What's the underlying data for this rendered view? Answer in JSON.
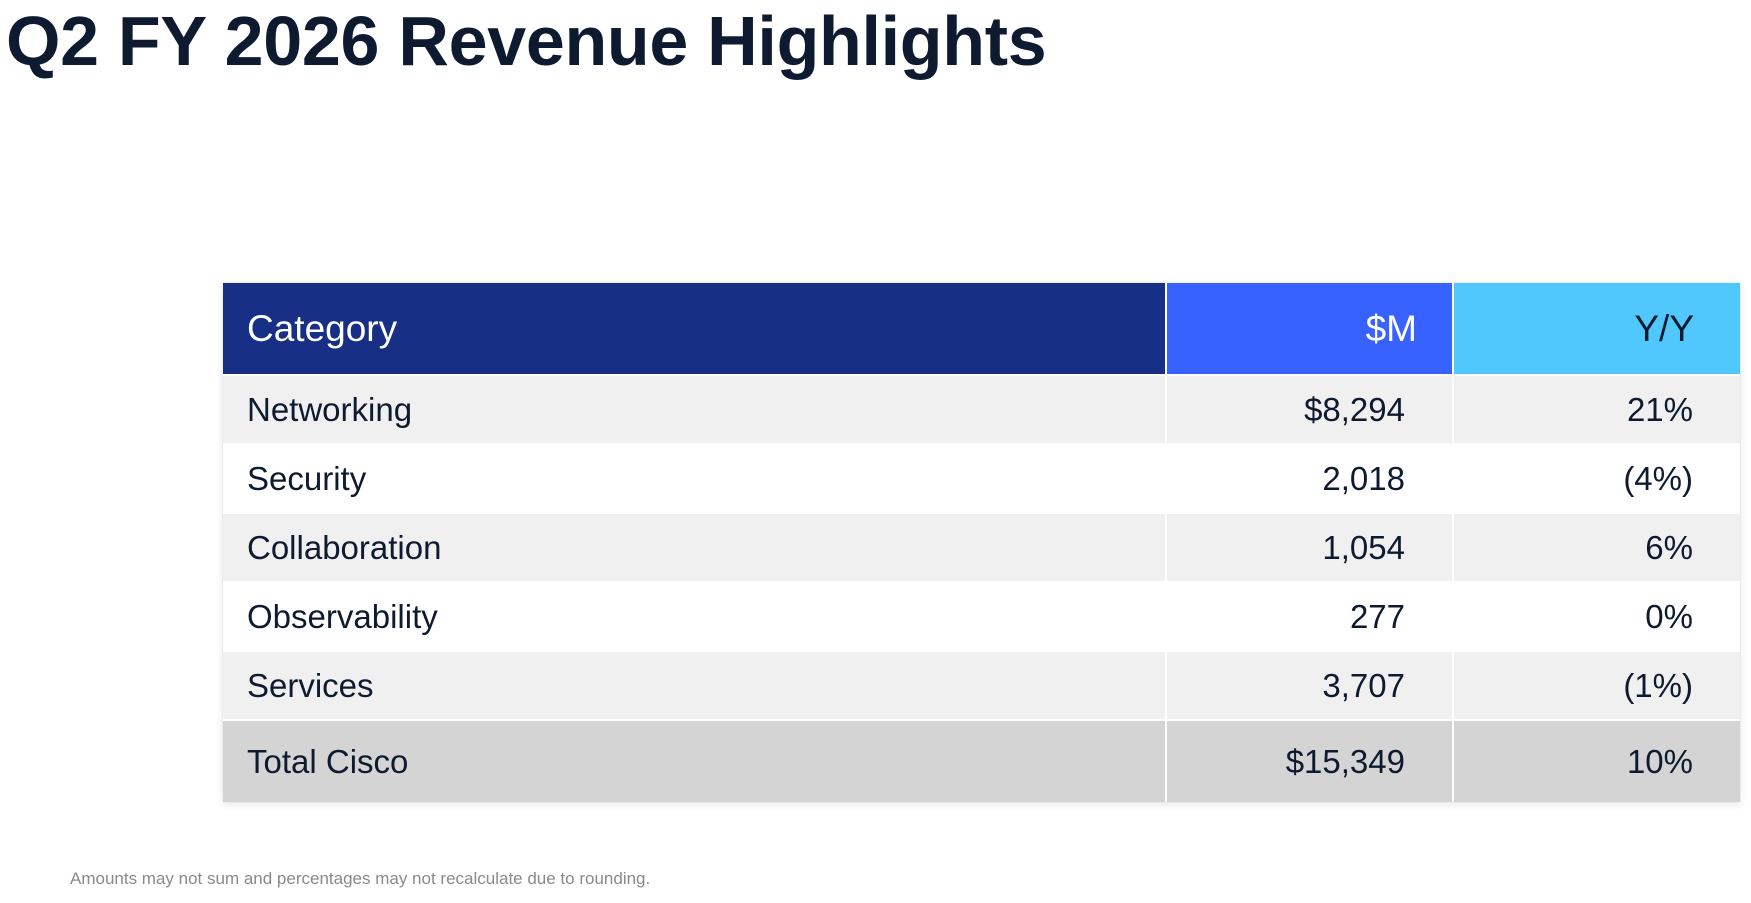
{
  "title": "Q2 FY 2026 Revenue Highlights",
  "table": {
    "headers": {
      "category": "Category",
      "usd_m": "$M",
      "yoy": "Y/Y"
    },
    "header_colors": {
      "category": "#172f85",
      "usd_m": "#3862ff",
      "yoy": "#50c8fd"
    },
    "rows": [
      {
        "category": "Networking",
        "usd_m": "$8,294",
        "yoy": "21%"
      },
      {
        "category": "Security",
        "usd_m": "2,018",
        "yoy": "(4%)"
      },
      {
        "category": "Collaboration",
        "usd_m": "1,054",
        "yoy": "6%"
      },
      {
        "category": "Observability",
        "usd_m": "277",
        "yoy": "0%"
      },
      {
        "category": "Services",
        "usd_m": "3,707",
        "yoy": "(1%)"
      }
    ],
    "total": {
      "category": "Total Cisco",
      "usd_m": "$15,349",
      "yoy": "10%"
    }
  },
  "footnote": "Amounts may not sum and percentages may not recalculate due to rounding."
}
